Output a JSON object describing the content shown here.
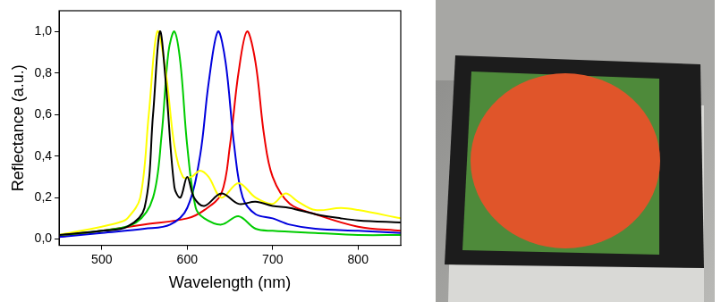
{
  "chart_data": {
    "type": "line",
    "x_label": "Wavelength (nm)",
    "y_label": "Reflectance (a.u.)",
    "xlim": [
      450,
      850
    ],
    "xticks": [
      500,
      600,
      700,
      800
    ],
    "ylim": [
      -0.03,
      1.1
    ],
    "yticks": [
      {
        "value": 0,
        "label": "0,0"
      },
      {
        "value": 0.2,
        "label": "0,2"
      },
      {
        "value": 0.4,
        "label": "0,4"
      },
      {
        "value": 0.6,
        "label": "0,6"
      },
      {
        "value": 0.8,
        "label": "0,8"
      },
      {
        "value": 1.0,
        "label": "1,0"
      }
    ],
    "grid": false,
    "series": [
      {
        "color": "#000000",
        "x": [
          450,
          500,
          530,
          550,
          560,
          568,
          575,
          585,
          592,
          600,
          608,
          620,
          640,
          660,
          680,
          700,
          720,
          750,
          780,
          800,
          850
        ],
        "values": [
          0.02,
          0.04,
          0.06,
          0.15,
          0.6,
          1.0,
          0.75,
          0.25,
          0.2,
          0.3,
          0.2,
          0.16,
          0.22,
          0.17,
          0.18,
          0.16,
          0.15,
          0.12,
          0.1,
          0.09,
          0.08
        ]
      },
      {
        "color": "#ffff00",
        "x": [
          450,
          500,
          520,
          530,
          545,
          555,
          565,
          575,
          585,
          595,
          605,
          615,
          625,
          640,
          660,
          680,
          700,
          715,
          730,
          750,
          780,
          800,
          850
        ],
        "values": [
          0.02,
          0.06,
          0.08,
          0.1,
          0.2,
          0.6,
          1.0,
          0.8,
          0.45,
          0.3,
          0.3,
          0.33,
          0.3,
          0.2,
          0.27,
          0.2,
          0.17,
          0.22,
          0.18,
          0.14,
          0.15,
          0.14,
          0.1
        ]
      },
      {
        "color": "#00cc00",
        "x": [
          450,
          500,
          540,
          560,
          570,
          578,
          585,
          592,
          600,
          610,
          620,
          640,
          660,
          680,
          700,
          750,
          800,
          850
        ],
        "values": [
          0.02,
          0.04,
          0.08,
          0.2,
          0.5,
          0.9,
          1.0,
          0.85,
          0.45,
          0.15,
          0.1,
          0.07,
          0.11,
          0.05,
          0.04,
          0.03,
          0.02,
          0.02
        ]
      },
      {
        "color": "#0000dd",
        "x": [
          450,
          500,
          550,
          580,
          600,
          615,
          625,
          636,
          645,
          655,
          665,
          680,
          700,
          720,
          750,
          800,
          850
        ],
        "values": [
          0.01,
          0.03,
          0.05,
          0.07,
          0.15,
          0.4,
          0.75,
          1.0,
          0.85,
          0.45,
          0.2,
          0.12,
          0.1,
          0.07,
          0.05,
          0.04,
          0.03
        ]
      },
      {
        "color": "#ee0000",
        "x": [
          450,
          500,
          550,
          600,
          620,
          640,
          650,
          660,
          670,
          680,
          690,
          700,
          720,
          750,
          800,
          850
        ],
        "values": [
          0.01,
          0.04,
          0.07,
          0.1,
          0.14,
          0.22,
          0.45,
          0.8,
          1.0,
          0.85,
          0.5,
          0.3,
          0.17,
          0.12,
          0.06,
          0.04
        ]
      }
    ]
  }
}
